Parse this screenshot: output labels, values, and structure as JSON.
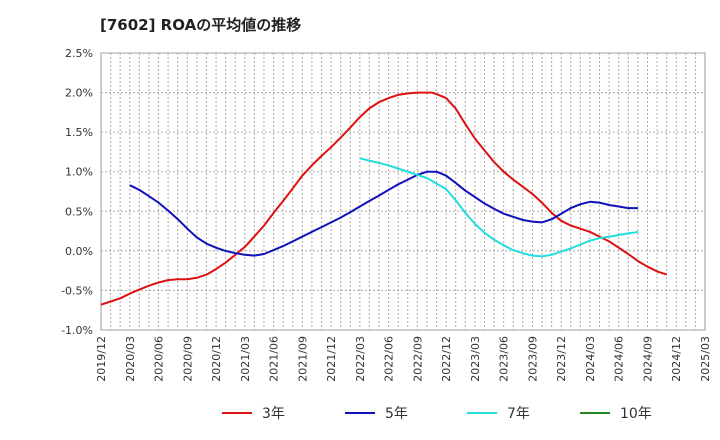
{
  "chart_data": {
    "type": "line",
    "title": "[7602]  ROAの平均値の推移",
    "xlabel": "",
    "ylabel": "",
    "ylim": [
      -1.0,
      2.5
    ],
    "y_ticks": [
      "2.5%",
      "2.0%",
      "1.5%",
      "1.0%",
      "0.5%",
      "0.0%",
      "-0.5%",
      "-1.0%"
    ],
    "y_tick_values": [
      2.5,
      2.0,
      1.5,
      1.0,
      0.5,
      0.0,
      -0.5,
      -1.0
    ],
    "x_ticks": [
      "2019/12",
      "2020/03",
      "2020/06",
      "2020/09",
      "2020/12",
      "2021/03",
      "2021/06",
      "2021/09",
      "2021/12",
      "2022/03",
      "2022/06",
      "2022/09",
      "2022/12",
      "2023/03",
      "2023/06",
      "2023/09",
      "2023/12",
      "2024/03",
      "2024/06",
      "2024/09",
      "2024/12",
      "2025/03"
    ],
    "x_unit": "quarters from 2019/12",
    "grid": true,
    "legend_position": "bottom",
    "series": [
      {
        "name": "3年",
        "color": "#dd1111",
        "points": [
          [
            0,
            -0.68
          ],
          [
            0.33,
            -0.64
          ],
          [
            0.67,
            -0.6
          ],
          [
            1,
            -0.54
          ],
          [
            1.33,
            -0.49
          ],
          [
            1.67,
            -0.44
          ],
          [
            2,
            -0.4
          ],
          [
            2.33,
            -0.37
          ],
          [
            2.67,
            -0.36
          ],
          [
            3,
            -0.36
          ],
          [
            3.33,
            -0.34
          ],
          [
            3.67,
            -0.3
          ],
          [
            4,
            -0.23
          ],
          [
            4.33,
            -0.15
          ],
          [
            4.67,
            -0.05
          ],
          [
            5,
            0.05
          ],
          [
            5.33,
            0.18
          ],
          [
            5.67,
            0.32
          ],
          [
            6,
            0.48
          ],
          [
            6.33,
            0.63
          ],
          [
            6.67,
            0.79
          ],
          [
            7,
            0.95
          ],
          [
            7.33,
            1.08
          ],
          [
            7.67,
            1.2
          ],
          [
            8,
            1.31
          ],
          [
            8.33,
            1.43
          ],
          [
            8.67,
            1.56
          ],
          [
            9,
            1.69
          ],
          [
            9.33,
            1.8
          ],
          [
            9.67,
            1.88
          ],
          [
            10,
            1.93
          ],
          [
            10.33,
            1.97
          ],
          [
            10.67,
            1.99
          ],
          [
            11,
            2.0
          ],
          [
            11.33,
            2.0
          ],
          [
            11.5,
            2.0
          ],
          [
            11.67,
            1.98
          ],
          [
            12,
            1.93
          ],
          [
            12.33,
            1.8
          ],
          [
            12.67,
            1.6
          ],
          [
            13,
            1.42
          ],
          [
            13.33,
            1.27
          ],
          [
            13.67,
            1.12
          ],
          [
            14,
            1.0
          ],
          [
            14.33,
            0.9
          ],
          [
            14.67,
            0.81
          ],
          [
            15,
            0.72
          ],
          [
            15.33,
            0.61
          ],
          [
            15.67,
            0.48
          ],
          [
            16,
            0.38
          ],
          [
            16.33,
            0.32
          ],
          [
            16.67,
            0.28
          ],
          [
            17,
            0.24
          ],
          [
            17.33,
            0.18
          ],
          [
            17.67,
            0.12
          ],
          [
            18,
            0.04
          ],
          [
            18.33,
            -0.04
          ],
          [
            18.67,
            -0.13
          ],
          [
            19,
            -0.2
          ],
          [
            19.33,
            -0.26
          ],
          [
            19.67,
            -0.3
          ]
        ]
      },
      {
        "name": "5年",
        "color": "#1111bb",
        "points": [
          [
            1,
            0.83
          ],
          [
            1.33,
            0.77
          ],
          [
            1.67,
            0.69
          ],
          [
            2,
            0.61
          ],
          [
            2.33,
            0.51
          ],
          [
            2.67,
            0.4
          ],
          [
            3,
            0.28
          ],
          [
            3.33,
            0.17
          ],
          [
            3.67,
            0.09
          ],
          [
            4,
            0.04
          ],
          [
            4.33,
            0.0
          ],
          [
            4.67,
            -0.03
          ],
          [
            5,
            -0.05
          ],
          [
            5.33,
            -0.06
          ],
          [
            5.67,
            -0.04
          ],
          [
            6,
            0.01
          ],
          [
            6.33,
            0.06
          ],
          [
            6.67,
            0.12
          ],
          [
            7,
            0.18
          ],
          [
            7.33,
            0.24
          ],
          [
            7.67,
            0.3
          ],
          [
            8,
            0.36
          ],
          [
            8.33,
            0.42
          ],
          [
            8.67,
            0.49
          ],
          [
            9,
            0.56
          ],
          [
            9.33,
            0.63
          ],
          [
            9.67,
            0.7
          ],
          [
            10,
            0.77
          ],
          [
            10.33,
            0.84
          ],
          [
            10.67,
            0.9
          ],
          [
            11,
            0.96
          ],
          [
            11.33,
            1.0
          ],
          [
            11.67,
            1.0
          ],
          [
            12,
            0.95
          ],
          [
            12.33,
            0.86
          ],
          [
            12.67,
            0.76
          ],
          [
            13,
            0.68
          ],
          [
            13.33,
            0.6
          ],
          [
            13.67,
            0.53
          ],
          [
            14,
            0.47
          ],
          [
            14.33,
            0.43
          ],
          [
            14.67,
            0.39
          ],
          [
            15,
            0.37
          ],
          [
            15.33,
            0.36
          ],
          [
            15.67,
            0.4
          ],
          [
            16,
            0.47
          ],
          [
            16.33,
            0.54
          ],
          [
            16.67,
            0.59
          ],
          [
            17,
            0.62
          ],
          [
            17.33,
            0.61
          ],
          [
            17.67,
            0.58
          ],
          [
            18,
            0.56
          ],
          [
            18.33,
            0.54
          ],
          [
            18.67,
            0.54
          ]
        ]
      },
      {
        "name": "7年",
        "color": "#22dddd",
        "points": [
          [
            9,
            1.17
          ],
          [
            9.33,
            1.14
          ],
          [
            9.67,
            1.11
          ],
          [
            10,
            1.08
          ],
          [
            10.33,
            1.04
          ],
          [
            10.67,
            1.0
          ],
          [
            11,
            0.96
          ],
          [
            11.33,
            0.92
          ],
          [
            11.67,
            0.85
          ],
          [
            12,
            0.78
          ],
          [
            12.33,
            0.64
          ],
          [
            12.67,
            0.48
          ],
          [
            13,
            0.34
          ],
          [
            13.33,
            0.23
          ],
          [
            13.67,
            0.14
          ],
          [
            14,
            0.07
          ],
          [
            14.33,
            0.01
          ],
          [
            14.67,
            -0.03
          ],
          [
            15,
            -0.06
          ],
          [
            15.33,
            -0.07
          ],
          [
            15.67,
            -0.05
          ],
          [
            16,
            -0.01
          ],
          [
            16.33,
            0.03
          ],
          [
            16.67,
            0.08
          ],
          [
            17,
            0.13
          ],
          [
            17.33,
            0.16
          ],
          [
            17.67,
            0.18
          ],
          [
            18,
            0.2
          ],
          [
            18.33,
            0.22
          ],
          [
            18.67,
            0.24
          ]
        ]
      },
      {
        "name": "10年",
        "color": "#228822",
        "points": []
      }
    ]
  }
}
